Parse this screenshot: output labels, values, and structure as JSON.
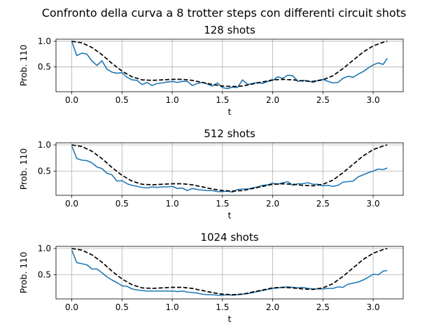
{
  "suptitle": "Confronto della curva a 8 trotter steps con differenti circuit shots",
  "colors": {
    "measured": "#1f77b4",
    "theory": "#000000",
    "grid": "#b0b0b0"
  },
  "chart_data": [
    {
      "type": "line",
      "title": "128 shots",
      "xlabel": "t",
      "ylabel": "Prob. 110",
      "xlim": [
        -0.157,
        3.299
      ],
      "ylim": [
        0.02,
        1.04
      ],
      "xticks": [
        0.0,
        0.5,
        1.0,
        1.5,
        2.0,
        2.5,
        3.0
      ],
      "yticks": [
        0.5,
        1.0
      ],
      "grid": true,
      "series": [
        {
          "style": "solid",
          "color": "#1f77b4",
          "x": [
            0.0,
            0.05,
            0.1,
            0.15,
            0.2,
            0.25,
            0.3,
            0.35,
            0.4,
            0.45,
            0.5,
            0.55,
            0.6,
            0.65,
            0.7,
            0.75,
            0.8,
            0.85,
            0.9,
            0.95,
            1.0,
            1.05,
            1.1,
            1.15,
            1.2,
            1.25,
            1.3,
            1.35,
            1.4,
            1.45,
            1.5,
            1.55,
            1.6,
            1.65,
            1.7,
            1.75,
            1.8,
            1.85,
            1.9,
            1.95,
            2.0,
            2.05,
            2.1,
            2.15,
            2.2,
            2.25,
            2.3,
            2.35,
            2.4,
            2.45,
            2.5,
            2.55,
            2.6,
            2.65,
            2.7,
            2.75,
            2.8,
            2.85,
            2.9,
            2.95,
            3.0,
            3.05,
            3.1,
            3.14
          ],
          "y": [
            1.0,
            0.72,
            0.77,
            0.75,
            0.62,
            0.53,
            0.62,
            0.46,
            0.4,
            0.38,
            0.39,
            0.3,
            0.25,
            0.24,
            0.16,
            0.2,
            0.14,
            0.18,
            0.19,
            0.21,
            0.22,
            0.2,
            0.22,
            0.22,
            0.14,
            0.18,
            0.2,
            0.17,
            0.13,
            0.19,
            0.1,
            0.08,
            0.11,
            0.1,
            0.25,
            0.16,
            0.18,
            0.2,
            0.18,
            0.22,
            0.24,
            0.31,
            0.28,
            0.34,
            0.33,
            0.22,
            0.24,
            0.23,
            0.2,
            0.24,
            0.26,
            0.22,
            0.19,
            0.2,
            0.28,
            0.32,
            0.3,
            0.36,
            0.41,
            0.48,
            0.54,
            0.58,
            0.55,
            0.67
          ]
        },
        {
          "style": "dashed",
          "color": "#000000",
          "x": [
            0.0,
            0.1,
            0.2,
            0.3,
            0.4,
            0.5,
            0.6,
            0.7,
            0.8,
            0.9,
            1.0,
            1.1,
            1.2,
            1.3,
            1.4,
            1.5,
            1.6,
            1.7,
            1.8,
            1.9,
            2.0,
            2.1,
            2.2,
            2.3,
            2.4,
            2.5,
            2.6,
            2.7,
            2.8,
            2.9,
            3.0,
            3.1,
            3.14
          ],
          "y": [
            1.0,
            0.97,
            0.88,
            0.74,
            0.57,
            0.42,
            0.31,
            0.25,
            0.24,
            0.25,
            0.26,
            0.26,
            0.24,
            0.2,
            0.16,
            0.13,
            0.12,
            0.13,
            0.17,
            0.21,
            0.25,
            0.26,
            0.25,
            0.23,
            0.22,
            0.25,
            0.33,
            0.47,
            0.63,
            0.79,
            0.91,
            0.98,
            1.0
          ]
        }
      ]
    },
    {
      "type": "line",
      "title": "512 shots",
      "xlabel": "t",
      "ylabel": "Prob. 110",
      "xlim": [
        -0.157,
        3.299
      ],
      "ylim": [
        0.04,
        1.04
      ],
      "xticks": [
        0.0,
        0.5,
        1.0,
        1.5,
        2.0,
        2.5,
        3.0
      ],
      "yticks": [
        0.5,
        1.0
      ],
      "grid": true,
      "series": [
        {
          "style": "solid",
          "color": "#1f77b4",
          "x": [
            0.0,
            0.05,
            0.1,
            0.15,
            0.2,
            0.25,
            0.3,
            0.35,
            0.4,
            0.45,
            0.5,
            0.55,
            0.6,
            0.65,
            0.7,
            0.75,
            0.8,
            0.85,
            0.9,
            0.95,
            1.0,
            1.05,
            1.1,
            1.15,
            1.2,
            1.25,
            1.3,
            1.35,
            1.4,
            1.45,
            1.5,
            1.55,
            1.6,
            1.65,
            1.7,
            1.75,
            1.8,
            1.85,
            1.9,
            1.95,
            2.0,
            2.05,
            2.1,
            2.15,
            2.2,
            2.25,
            2.3,
            2.35,
            2.4,
            2.45,
            2.5,
            2.55,
            2.6,
            2.65,
            2.7,
            2.75,
            2.8,
            2.85,
            2.9,
            2.95,
            3.0,
            3.05,
            3.1,
            3.14
          ],
          "y": [
            0.98,
            0.74,
            0.71,
            0.7,
            0.66,
            0.58,
            0.55,
            0.46,
            0.43,
            0.31,
            0.32,
            0.26,
            0.23,
            0.21,
            0.19,
            0.18,
            0.2,
            0.19,
            0.2,
            0.2,
            0.21,
            0.17,
            0.18,
            0.13,
            0.17,
            0.15,
            0.14,
            0.13,
            0.13,
            0.11,
            0.11,
            0.12,
            0.1,
            0.15,
            0.16,
            0.16,
            0.18,
            0.2,
            0.23,
            0.24,
            0.27,
            0.25,
            0.28,
            0.3,
            0.23,
            0.26,
            0.26,
            0.28,
            0.25,
            0.25,
            0.22,
            0.23,
            0.21,
            0.23,
            0.29,
            0.3,
            0.31,
            0.39,
            0.43,
            0.47,
            0.5,
            0.54,
            0.53,
            0.56
          ]
        },
        {
          "style": "dashed",
          "color": "#000000",
          "x": [
            0.0,
            0.1,
            0.2,
            0.3,
            0.4,
            0.5,
            0.6,
            0.7,
            0.8,
            0.9,
            1.0,
            1.1,
            1.2,
            1.3,
            1.4,
            1.5,
            1.6,
            1.7,
            1.8,
            1.9,
            2.0,
            2.1,
            2.2,
            2.3,
            2.4,
            2.5,
            2.6,
            2.7,
            2.8,
            2.9,
            3.0,
            3.1,
            3.14
          ],
          "y": [
            1.0,
            0.97,
            0.88,
            0.74,
            0.57,
            0.42,
            0.31,
            0.25,
            0.24,
            0.25,
            0.26,
            0.26,
            0.24,
            0.2,
            0.16,
            0.13,
            0.12,
            0.13,
            0.17,
            0.21,
            0.25,
            0.26,
            0.25,
            0.23,
            0.22,
            0.25,
            0.33,
            0.47,
            0.63,
            0.79,
            0.91,
            0.98,
            1.0
          ]
        }
      ]
    },
    {
      "type": "line",
      "title": "1024 shots",
      "xlabel": "t",
      "ylabel": "Prob. 110",
      "xlim": [
        -0.157,
        3.299
      ],
      "ylim": [
        0.04,
        1.04
      ],
      "xticks": [
        0.0,
        0.5,
        1.0,
        1.5,
        2.0,
        2.5,
        3.0
      ],
      "yticks": [
        0.5,
        1.0
      ],
      "grid": true,
      "series": [
        {
          "style": "solid",
          "color": "#1f77b4",
          "x": [
            0.0,
            0.05,
            0.1,
            0.15,
            0.2,
            0.25,
            0.3,
            0.35,
            0.4,
            0.45,
            0.5,
            0.55,
            0.6,
            0.65,
            0.7,
            0.75,
            0.8,
            0.85,
            0.9,
            0.95,
            1.0,
            1.05,
            1.1,
            1.15,
            1.2,
            1.25,
            1.3,
            1.35,
            1.4,
            1.45,
            1.5,
            1.55,
            1.6,
            1.65,
            1.7,
            1.75,
            1.8,
            1.85,
            1.9,
            1.95,
            2.0,
            2.05,
            2.1,
            2.15,
            2.2,
            2.25,
            2.3,
            2.35,
            2.4,
            2.45,
            2.5,
            2.55,
            2.6,
            2.65,
            2.7,
            2.75,
            2.8,
            2.85,
            2.9,
            2.95,
            3.0,
            3.05,
            3.1,
            3.14
          ],
          "y": [
            0.97,
            0.73,
            0.71,
            0.69,
            0.61,
            0.61,
            0.54,
            0.46,
            0.4,
            0.35,
            0.29,
            0.28,
            0.23,
            0.21,
            0.2,
            0.19,
            0.19,
            0.19,
            0.19,
            0.19,
            0.19,
            0.18,
            0.19,
            0.17,
            0.16,
            0.15,
            0.13,
            0.12,
            0.12,
            0.11,
            0.11,
            0.12,
            0.11,
            0.12,
            0.13,
            0.14,
            0.16,
            0.18,
            0.2,
            0.22,
            0.24,
            0.25,
            0.26,
            0.27,
            0.26,
            0.25,
            0.26,
            0.24,
            0.23,
            0.23,
            0.23,
            0.24,
            0.24,
            0.27,
            0.26,
            0.32,
            0.34,
            0.36,
            0.4,
            0.45,
            0.51,
            0.5,
            0.57,
            0.58
          ]
        },
        {
          "style": "dashed",
          "color": "#000000",
          "x": [
            0.0,
            0.1,
            0.2,
            0.3,
            0.4,
            0.5,
            0.6,
            0.7,
            0.8,
            0.9,
            1.0,
            1.1,
            1.2,
            1.3,
            1.4,
            1.5,
            1.6,
            1.7,
            1.8,
            1.9,
            2.0,
            2.1,
            2.2,
            2.3,
            2.4,
            2.5,
            2.6,
            2.7,
            2.8,
            2.9,
            3.0,
            3.1,
            3.14
          ],
          "y": [
            1.0,
            0.97,
            0.88,
            0.74,
            0.57,
            0.42,
            0.31,
            0.25,
            0.24,
            0.25,
            0.26,
            0.26,
            0.24,
            0.2,
            0.16,
            0.13,
            0.12,
            0.13,
            0.17,
            0.21,
            0.25,
            0.26,
            0.25,
            0.23,
            0.22,
            0.25,
            0.33,
            0.47,
            0.63,
            0.79,
            0.91,
            0.98,
            1.0
          ]
        }
      ]
    }
  ]
}
